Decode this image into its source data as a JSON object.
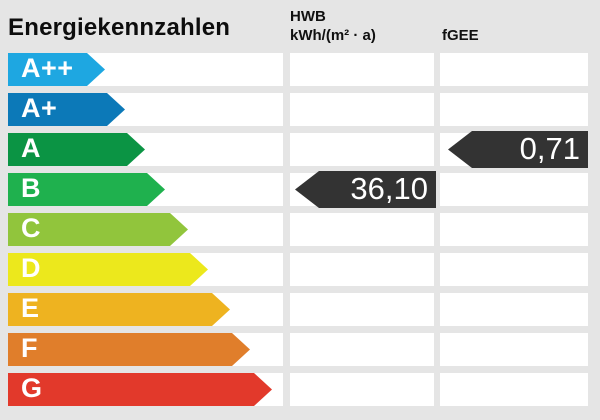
{
  "colors": {
    "background": "#e5e5e5",
    "cell": "#ffffff",
    "value_arrow": "#333333",
    "grade_text": "#ffffff",
    "header_text": "#0d0d0d"
  },
  "header": {
    "title": "Energiekennzahlen",
    "hwb_label": "HWB",
    "hwb_unit": "kWh/(m² · a)",
    "fgee_label": "fGEE"
  },
  "scale": [
    {
      "grade": "A++",
      "color": "#1ea7e1",
      "arrow_width": 97
    },
    {
      "grade": "A+",
      "color": "#0c79b8",
      "arrow_width": 117
    },
    {
      "grade": "A",
      "color": "#0b9444",
      "arrow_width": 137
    },
    {
      "grade": "B",
      "color": "#1fb14e",
      "arrow_width": 157
    },
    {
      "grade": "C",
      "color": "#91c53c",
      "arrow_width": 180
    },
    {
      "grade": "D",
      "color": "#ece81c",
      "arrow_width": 200
    },
    {
      "grade": "E",
      "color": "#eeb320",
      "arrow_width": 222
    },
    {
      "grade": "F",
      "color": "#e07e2b",
      "arrow_width": 242
    },
    {
      "grade": "G",
      "color": "#e2392b",
      "arrow_width": 264
    }
  ],
  "values": {
    "hwb": {
      "value": "36,10",
      "grade": "B"
    },
    "fgee": {
      "value": "0,71",
      "grade": "A"
    }
  },
  "chart_data": {
    "type": "bar",
    "subtype": "energy-rating-scale",
    "title": "Energiekennzahlen",
    "categories": [
      "A++",
      "A+",
      "A",
      "B",
      "C",
      "D",
      "E",
      "F",
      "G"
    ],
    "series": [
      {
        "name": "HWB",
        "unit": "kWh/(m² · a)",
        "value": 36.1,
        "display": "36,10",
        "rating": "B"
      },
      {
        "name": "fGEE",
        "unit": "",
        "value": 0.71,
        "display": "0,71",
        "rating": "A"
      }
    ],
    "legend_position": "none",
    "grid": true,
    "orientation": "horizontal"
  }
}
